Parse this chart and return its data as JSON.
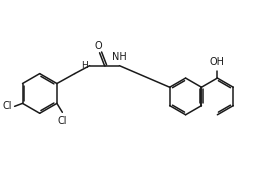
{
  "bg_color": "#ffffff",
  "bond_color": "#1a1a1a",
  "text_color": "#1a1a1a",
  "lw": 1.1,
  "fs": 7.0,
  "figsize": [
    2.6,
    1.73
  ],
  "dpi": 100,
  "xlim": [
    0,
    26
  ],
  "ylim": [
    0,
    17
  ]
}
